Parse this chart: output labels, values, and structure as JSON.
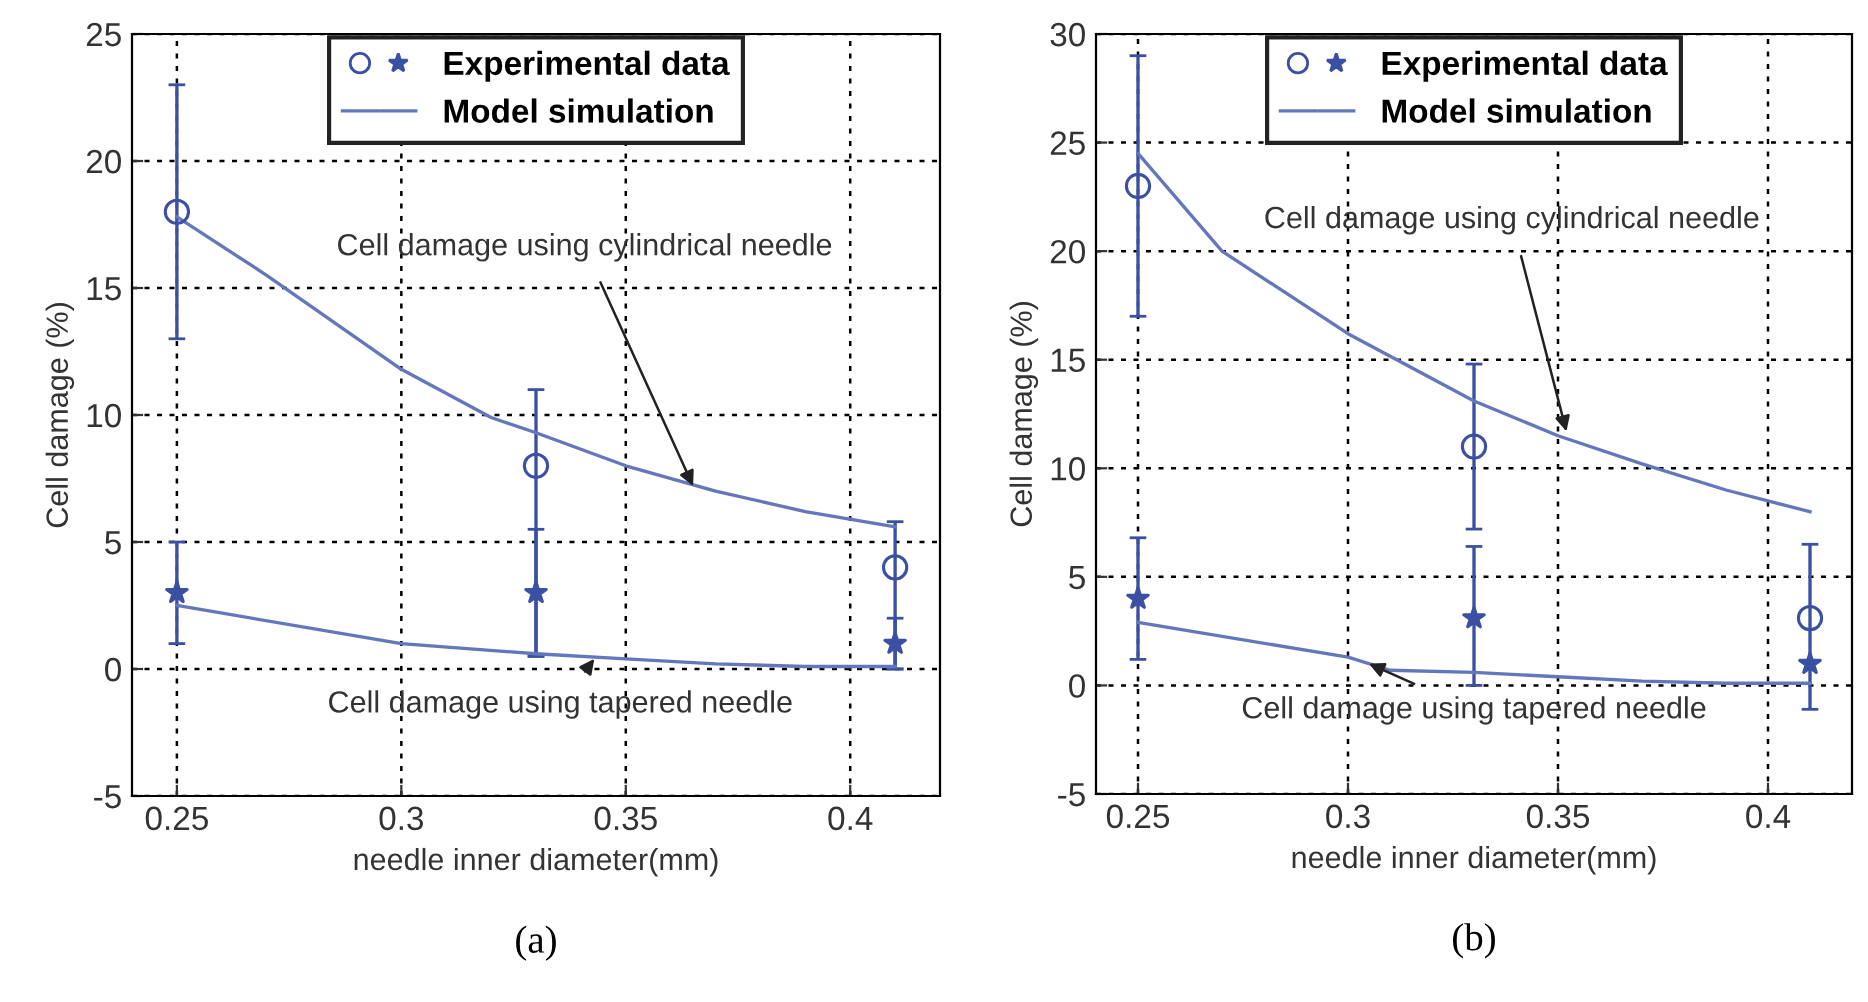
{
  "chart_data": [
    {
      "type": "scatter",
      "xlabel": "needle inner diameter(mm)",
      "ylabel": "Cell damage (%)",
      "xlim": [
        0.24,
        0.42
      ],
      "ylim": [
        -5,
        25
      ],
      "xticks": [
        0.25,
        0.3,
        0.35,
        0.4
      ],
      "yticks": [
        -5,
        0,
        5,
        10,
        15,
        20,
        25
      ],
      "grid": true,
      "legend": "top",
      "series": [
        {
          "name": "Experimental data",
          "marker": "circle",
          "color": "#3b4fa3",
          "x": [
            0.25,
            0.33,
            0.41
          ],
          "values": [
            18,
            8,
            4
          ],
          "errors": [
            [
              13,
              23
            ],
            [
              0.5,
              11
            ],
            [
              0,
              5.8
            ]
          ]
        },
        {
          "marker": "star",
          "color": "#3b4fa3",
          "x": [
            0.25,
            0.33,
            0.41
          ],
          "values": [
            3,
            3,
            1
          ],
          "errors": [
            [
              1,
              5
            ],
            [
              0.5,
              5.5
            ],
            [
              0,
              2
            ]
          ]
        },
        {
          "name": "Model simulation",
          "type": "line",
          "color": "#6477bd",
          "x": [
            0.25,
            0.27,
            0.3,
            0.32,
            0.33,
            0.35,
            0.37,
            0.39,
            0.41
          ],
          "values": [
            17.8,
            15.5,
            11.8,
            9.9,
            9.3,
            8,
            7,
            6.2,
            5.6
          ]
        },
        {
          "type": "line",
          "color": "#6477bd",
          "x": [
            0.25,
            0.3,
            0.33,
            0.35,
            0.37,
            0.39,
            0.41
          ],
          "values": [
            2.5,
            1.0,
            0.6,
            0.4,
            0.2,
            0.1,
            0.1
          ]
        }
      ],
      "annotations": [
        {
          "text": "Cell damage using cylindrical needle",
          "x": 0.365,
          "y": 7.2
        },
        {
          "text": "Cell damage using tapered needle",
          "x": 0.343,
          "y": 0.4
        },
        "(a)"
      ]
    },
    {
      "type": "scatter",
      "xlabel": "needle inner diameter(mm)",
      "ylabel": "Cell damage (%)",
      "xlim": [
        0.24,
        0.42
      ],
      "ylim": [
        -5,
        30
      ],
      "xticks": [
        0.25,
        0.3,
        0.35,
        0.4
      ],
      "yticks": [
        -5,
        0,
        5,
        10,
        15,
        20,
        25,
        30
      ],
      "grid": true,
      "legend": "top",
      "series": [
        {
          "name": "Experimental data",
          "marker": "circle",
          "color": "#3b4fa3",
          "x": [
            0.25,
            0.33,
            0.41
          ],
          "values": [
            23,
            11,
            3.1
          ],
          "errors": [
            [
              17,
              29
            ],
            [
              7.2,
              14.8
            ],
            [
              -1.1,
              6.5
            ]
          ]
        },
        {
          "marker": "star",
          "color": "#3b4fa3",
          "x": [
            0.25,
            0.33,
            0.41
          ],
          "values": [
            4,
            3.1,
            1
          ],
          "errors": [
            [
              1.2,
              6.8
            ],
            [
              0,
              6.4
            ],
            null
          ]
        },
        {
          "name": "Model simulation",
          "type": "line",
          "color": "#6477bd",
          "x": [
            0.25,
            0.27,
            0.3,
            0.33,
            0.35,
            0.37,
            0.39,
            0.41
          ],
          "values": [
            24.5,
            20,
            16.2,
            13.1,
            11.5,
            10.2,
            9,
            8
          ]
        },
        {
          "type": "line",
          "color": "#6477bd",
          "x": [
            0.25,
            0.3,
            0.31,
            0.33,
            0.35,
            0.37,
            0.39,
            0.41
          ],
          "values": [
            2.9,
            1.3,
            0.7,
            0.6,
            0.4,
            0.2,
            0.1,
            0.1
          ]
        }
      ],
      "annotations": [
        {
          "text": "Cell damage using cylindrical needle",
          "x": 0.352,
          "y": 11.7
        },
        {
          "text": "Cell damage using tapered needle",
          "x": 0.305,
          "y": 1.0
        },
        "(b)"
      ]
    }
  ]
}
